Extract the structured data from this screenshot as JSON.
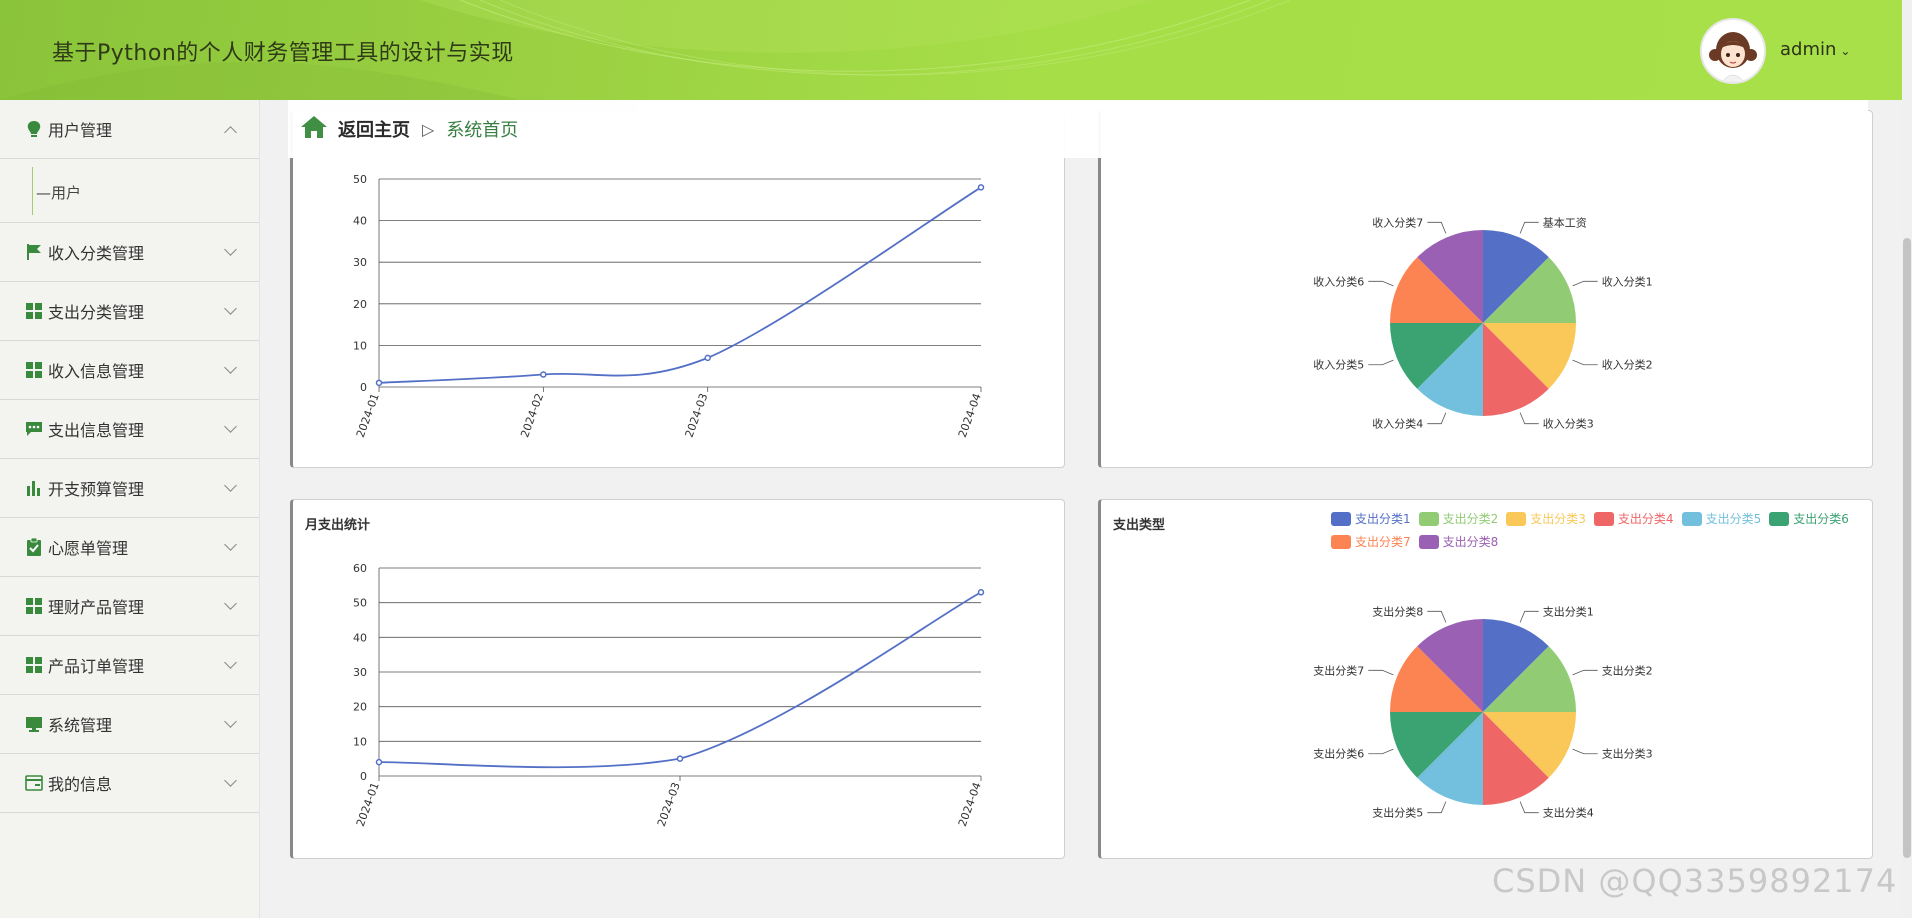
{
  "header": {
    "title": "基于Python的个人财务管理工具的设计与实现",
    "username": "admin",
    "colors": {
      "header_bg": "#9bd142",
      "accent": "#3a8a3e"
    }
  },
  "sidebar": {
    "items": [
      {
        "label": "用户管理",
        "icon": "bulb-icon",
        "expanded": true,
        "children": [
          "用户"
        ]
      },
      {
        "label": "收入分类管理",
        "icon": "flag-icon"
      },
      {
        "label": "支出分类管理",
        "icon": "grid-icon"
      },
      {
        "label": "收入信息管理",
        "icon": "grid-icon"
      },
      {
        "label": "支出信息管理",
        "icon": "chat-icon"
      },
      {
        "label": "开支预算管理",
        "icon": "bar-chart-icon"
      },
      {
        "label": "心愿单管理",
        "icon": "clipboard-check-icon"
      },
      {
        "label": "理财产品管理",
        "icon": "grid-icon"
      },
      {
        "label": "产品订单管理",
        "icon": "grid-icon"
      },
      {
        "label": "系统管理",
        "icon": "monitor-icon"
      },
      {
        "label": "我的信息",
        "icon": "card-icon"
      }
    ]
  },
  "breadcrumb": {
    "home": "返回主页",
    "separator": "▷",
    "current": "系统首页"
  },
  "chart_data": [
    {
      "type": "line",
      "title": "",
      "x": [
        "2024-01",
        "2024-02",
        "2024-03",
        "2024-04"
      ],
      "values": [
        1,
        3,
        7,
        48
      ],
      "ylim": [
        0,
        50
      ],
      "yticks": [
        0,
        10,
        20,
        30,
        40,
        50
      ],
      "grid": true
    },
    {
      "type": "pie",
      "title": "",
      "labels": [
        "基本工资",
        "收入分类1",
        "收入分类2",
        "收入分类3",
        "收入分类4",
        "收入分类5",
        "收入分类6",
        "收入分类7"
      ],
      "values": [
        1,
        1,
        1,
        1,
        1,
        1,
        1,
        1
      ]
    },
    {
      "type": "line",
      "title": "月支出统计",
      "x": [
        "2024-01",
        "2024-03",
        "2024-04"
      ],
      "values": [
        4,
        5,
        53
      ],
      "ylim": [
        0,
        60
      ],
      "yticks": [
        0,
        10,
        20,
        30,
        40,
        50,
        60
      ],
      "grid": true
    },
    {
      "type": "pie",
      "title": "支出类型",
      "labels": [
        "支出分类1",
        "支出分类2",
        "支出分类3",
        "支出分类4",
        "支出分类5",
        "支出分类6",
        "支出分类7",
        "支出分类8"
      ],
      "values": [
        1,
        1,
        1,
        1,
        1,
        1,
        1,
        1
      ],
      "legend": [
        "支出分类1",
        "支出分类2",
        "支出分类3",
        "支出分类4",
        "支出分类5",
        "支出分类6",
        "支出分类7",
        "支出分类8"
      ],
      "legend_position": "top-right"
    }
  ],
  "palette": [
    "#5470c6",
    "#91cc75",
    "#fac858",
    "#ee6666",
    "#73c0de",
    "#3ba272",
    "#fc8452",
    "#9a60b4"
  ],
  "watermark": "CSDN @QQ3359892174"
}
